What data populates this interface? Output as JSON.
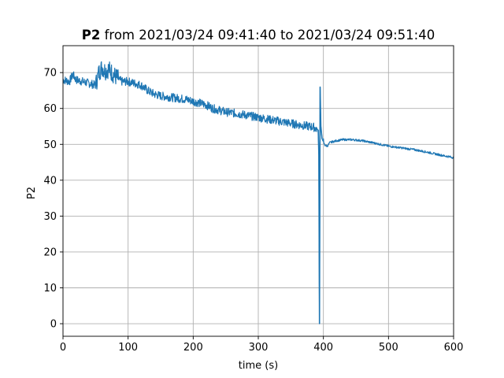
{
  "chart_data": {
    "type": "line",
    "title_bold": "P2",
    "title_rest": " from 2021/03/24 09:41:40 to 2021/03/24 09:51:40",
    "xlabel": "time (s)",
    "ylabel": "P2",
    "xlim": [
      0,
      600
    ],
    "ylim": [
      -3.5,
      77.5
    ],
    "xticks": [
      0,
      100,
      200,
      300,
      400,
      500,
      600
    ],
    "yticks": [
      0,
      10,
      20,
      30,
      40,
      50,
      60,
      70
    ],
    "grid": true,
    "series": [
      {
        "color": "#1f77b4",
        "noise_band": 1.2,
        "points": [
          [
            0,
            68.0
          ],
          [
            10,
            67.5
          ],
          [
            15,
            69.5
          ],
          [
            20,
            68.0
          ],
          [
            30,
            67.5
          ],
          [
            40,
            67.0
          ],
          [
            50,
            66.5
          ],
          [
            55,
            70.0
          ],
          [
            60,
            71.5
          ],
          [
            65,
            70.5
          ],
          [
            70,
            71.0
          ],
          [
            75,
            70.0
          ],
          [
            80,
            69.0
          ],
          [
            90,
            67.5
          ],
          [
            100,
            67.5
          ],
          [
            110,
            67.0
          ],
          [
            120,
            66.5
          ],
          [
            130,
            65.0
          ],
          [
            140,
            64.0
          ],
          [
            150,
            63.5
          ],
          [
            170,
            63.0
          ],
          [
            190,
            62.5
          ],
          [
            200,
            62.0
          ],
          [
            210,
            61.5
          ],
          [
            220,
            61.0
          ],
          [
            230,
            60.0
          ],
          [
            250,
            59.0
          ],
          [
            270,
            58.5
          ],
          [
            300,
            57.5
          ],
          [
            330,
            56.5
          ],
          [
            360,
            55.5
          ],
          [
            385,
            54.8
          ],
          [
            392,
            54.0
          ],
          [
            393,
            47.0
          ],
          [
            394,
            0.0
          ],
          [
            395,
            66.0
          ],
          [
            396,
            55.0
          ],
          [
            398,
            51.5
          ],
          [
            402,
            49.8
          ],
          [
            406,
            49.5
          ],
          [
            410,
            50.5
          ],
          [
            420,
            51.0
          ],
          [
            430,
            51.3
          ],
          [
            445,
            51.3
          ],
          [
            460,
            51.0
          ],
          [
            480,
            50.3
          ],
          [
            500,
            49.5
          ],
          [
            520,
            49.0
          ],
          [
            540,
            48.5
          ],
          [
            560,
            47.8
          ],
          [
            580,
            47.0
          ],
          [
            600,
            46.3
          ]
        ]
      }
    ]
  }
}
